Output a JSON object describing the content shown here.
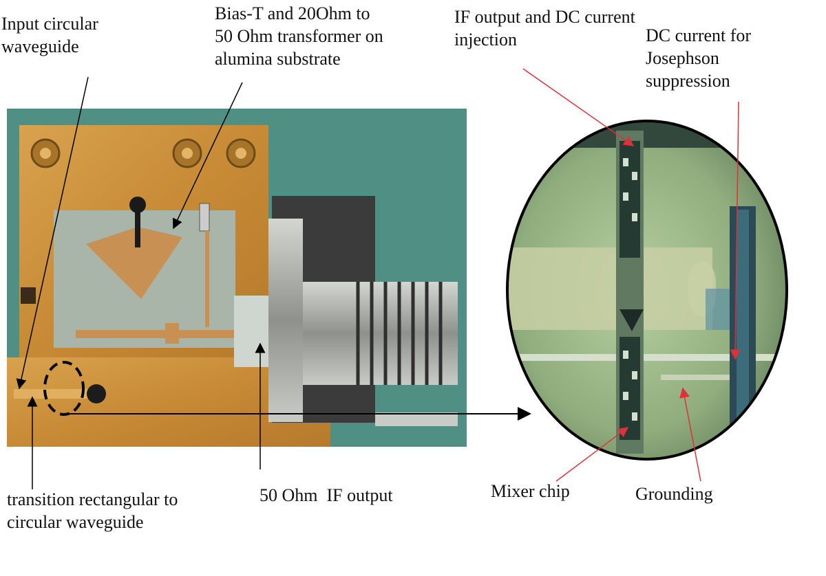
{
  "labels": {
    "input_waveguide": "Input circular\nwaveguide",
    "bias_t": "Bias-T and 20Ohm to\n50 Ohm transformer on\nalumina substrate",
    "if_dc": "IF output and DC current\ninjection",
    "dc_josephson": "DC current for\nJosephson\nsuppression",
    "transition": "transition rectangular to\ncircular waveguide",
    "if_output_50": "50 Ohm  IF output",
    "mixer_chip": "Mixer chip",
    "grounding": "Grounding"
  },
  "colors": {
    "background_teal": "#4f8f84",
    "gold_block": "#c9903c",
    "alumina": "#a9b5a8",
    "zoom_green": "#9fbe8e",
    "red_arrow": "#e0303a"
  }
}
